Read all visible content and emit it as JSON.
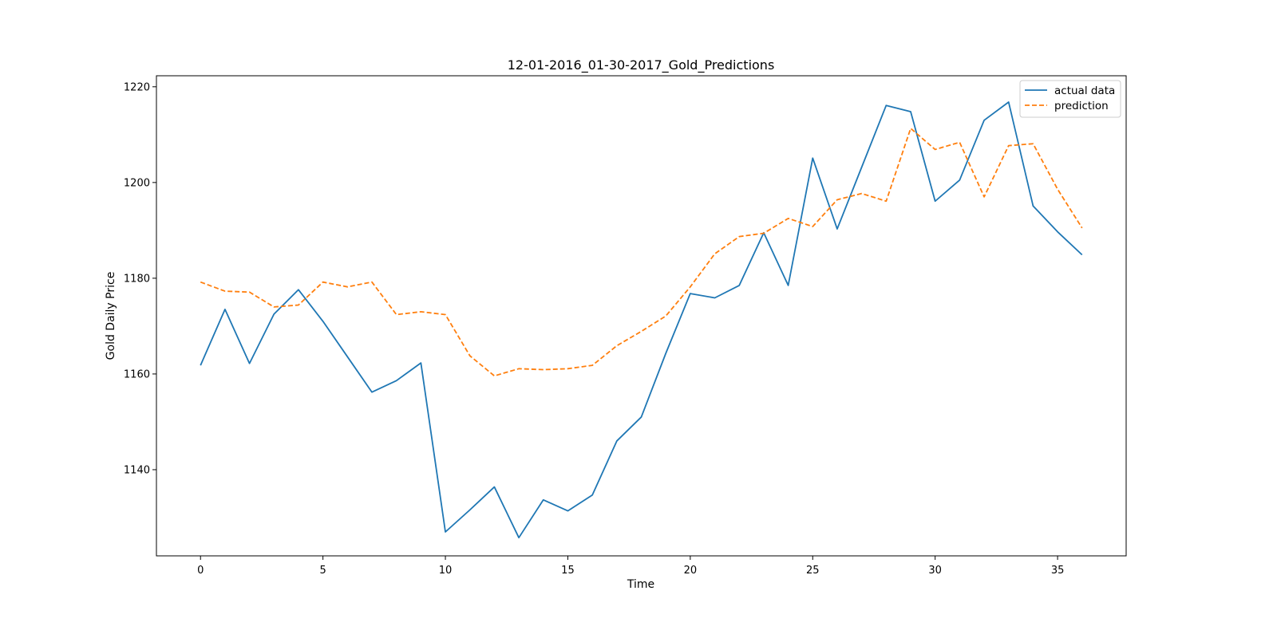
{
  "chart_data": {
    "type": "line",
    "title": "12-01-2016_01-30-2017_Gold_Predictions",
    "xlabel": "Time",
    "ylabel": "Gold Daily Price",
    "xlim": [
      -1.8,
      37.8
    ],
    "ylim": [
      1122,
      1222.3
    ],
    "xticks": [
      0,
      5,
      10,
      15,
      20,
      25,
      30,
      35
    ],
    "yticks": [
      1140,
      1160,
      1180,
      1200,
      1220
    ],
    "grid": false,
    "legend_position": "top-right",
    "x": [
      0,
      1,
      2,
      3,
      4,
      5,
      6,
      7,
      8,
      9,
      10,
      11,
      12,
      13,
      14,
      15,
      16,
      17,
      18,
      19,
      20,
      21,
      22,
      23,
      24,
      25,
      26,
      27,
      28,
      29,
      30,
      31,
      32,
      33,
      34,
      35,
      36
    ],
    "series": [
      {
        "name": "actual data",
        "color": "#1f77b4",
        "style": "solid",
        "values": [
          1161.8,
          1173.5,
          1162.2,
          1172.5,
          1177.6,
          1171.0,
          1163.6,
          1156.2,
          1158.6,
          1162.3,
          1127.0,
          1131.6,
          1136.4,
          1125.8,
          1133.7,
          1131.4,
          1134.7,
          1146.0,
          1151.0,
          1164.3,
          1176.8,
          1175.9,
          1178.5,
          1189.5,
          1178.5,
          1205.1,
          1190.3,
          1203.2,
          1216.1,
          1214.8,
          1196.1,
          1200.5,
          1213.0,
          1216.8,
          1195.1,
          1189.7,
          1184.9
        ]
      },
      {
        "name": "prediction",
        "color": "#ff7f0e",
        "style": "dashed",
        "values": [
          1179.2,
          1177.3,
          1177.1,
          1174.0,
          1174.4,
          1179.2,
          1178.2,
          1179.2,
          1172.4,
          1173.0,
          1172.4,
          1163.8,
          1159.6,
          1161.1,
          1160.9,
          1161.1,
          1161.8,
          1165.9,
          1168.9,
          1172.1,
          1178.2,
          1185.1,
          1188.7,
          1189.4,
          1192.5,
          1190.8,
          1196.4,
          1197.7,
          1196.1,
          1211.3,
          1206.9,
          1208.4,
          1197.0,
          1207.7,
          1208.1,
          1198.6,
          1190.5
        ]
      }
    ]
  }
}
